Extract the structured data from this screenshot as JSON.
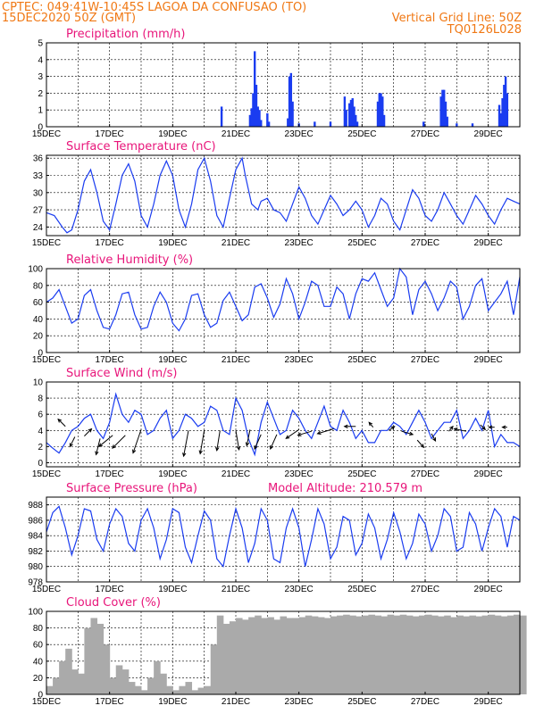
{
  "header": {
    "line1_left": "CPTEC:  049:41W-10:45S  LAGOA DA CONFUSAO (TO)",
    "line2_left": "15DEC2020 50Z (GMT)",
    "line2_right": "Vertical Grid Line: 50Z",
    "line3_right": "TQ0126L028"
  },
  "colors": {
    "header": "#f07814",
    "title": "#e8157a",
    "series": "#1a3cf0",
    "wind_arrow": "#000000",
    "cloud": "#aaaaaa"
  },
  "chart_data": [
    {
      "type": "bar",
      "title": "Precipitation (mm/h)",
      "ylim": [
        0,
        5
      ],
      "yticks": [
        "0",
        "1",
        "2",
        "3",
        "4",
        "5"
      ],
      "xticks": [
        "15DEC",
        "17DEC",
        "19DEC",
        "21DEC",
        "23DEC",
        "25DEC",
        "27DEC",
        "29DEC"
      ],
      "x_units": "days since 15DEC",
      "bars": [
        [
          5.55,
          1.2
        ],
        [
          6.45,
          0.7
        ],
        [
          6.5,
          1.1
        ],
        [
          6.55,
          2.0
        ],
        [
          6.6,
          4.5
        ],
        [
          6.65,
          2.5
        ],
        [
          6.7,
          1.2
        ],
        [
          6.75,
          1.0
        ],
        [
          6.8,
          0.4
        ],
        [
          7.0,
          0.8
        ],
        [
          7.05,
          0.3
        ],
        [
          7.65,
          0.5
        ],
        [
          7.7,
          3.0
        ],
        [
          7.75,
          3.2
        ],
        [
          7.8,
          1.5
        ],
        [
          8.0,
          0.2
        ],
        [
          8.5,
          0.3
        ],
        [
          9.0,
          0.3
        ],
        [
          9.45,
          1.8
        ],
        [
          9.5,
          1.0
        ],
        [
          9.6,
          1.4
        ],
        [
          9.65,
          1.6
        ],
        [
          9.7,
          1.7
        ],
        [
          9.75,
          1.2
        ],
        [
          9.8,
          0.7
        ],
        [
          9.85,
          0.3
        ],
        [
          10.5,
          1.5
        ],
        [
          10.55,
          2.0
        ],
        [
          10.6,
          2.0
        ],
        [
          10.65,
          1.8
        ],
        [
          10.7,
          0.7
        ],
        [
          11.95,
          0.3
        ],
        [
          12.5,
          1.8
        ],
        [
          12.55,
          2.2
        ],
        [
          12.6,
          2.2
        ],
        [
          12.65,
          1.5
        ],
        [
          12.7,
          0.6
        ],
        [
          13.0,
          0.2
        ],
        [
          13.5,
          0.2
        ],
        [
          14.35,
          1.3
        ],
        [
          14.4,
          0.8
        ],
        [
          14.45,
          1.7
        ],
        [
          14.5,
          2.5
        ],
        [
          14.55,
          3.0
        ],
        [
          14.6,
          2.0
        ]
      ]
    },
    {
      "type": "line",
      "title": "Surface Temperature (nC)",
      "ylim": [
        22.5,
        36.5
      ],
      "yticks": [
        24,
        27,
        30,
        33,
        36
      ],
      "xticks": [
        "15DEC",
        "17DEC",
        "19DEC",
        "21DEC",
        "23DEC",
        "25DEC",
        "27DEC",
        "29DEC"
      ],
      "x_units": "days since 15DEC",
      "x": [
        0,
        0.25,
        0.5,
        0.65,
        0.8,
        1.0,
        1.2,
        1.4,
        1.6,
        1.8,
        2.0,
        2.2,
        2.4,
        2.6,
        2.8,
        3.0,
        3.2,
        3.4,
        3.6,
        3.8,
        4.0,
        4.2,
        4.4,
        4.6,
        4.8,
        5.0,
        5.2,
        5.4,
        5.6,
        5.8,
        6.0,
        6.2,
        6.3,
        6.5,
        6.7,
        6.8,
        7.0,
        7.2,
        7.4,
        7.6,
        7.8,
        8.0,
        8.2,
        8.4,
        8.6,
        8.8,
        9.0,
        9.2,
        9.4,
        9.6,
        9.8,
        10.0,
        10.2,
        10.4,
        10.6,
        10.8,
        11.0,
        11.2,
        11.4,
        11.6,
        11.8,
        12.0,
        12.2,
        12.4,
        12.6,
        12.8,
        13.0,
        13.2,
        13.4,
        13.6,
        13.8,
        14.0,
        14.2,
        14.4,
        14.6,
        14.8,
        15.0
      ],
      "y": [
        26.5,
        26,
        24,
        23,
        23.5,
        27,
        32,
        34,
        30,
        25,
        23.5,
        28,
        33,
        35,
        32,
        26,
        24,
        28,
        33,
        35.5,
        33,
        27,
        24,
        28,
        34,
        36,
        32,
        26,
        24,
        29,
        34,
        36,
        33,
        28,
        27,
        28.5,
        29,
        27,
        26.5,
        25,
        28,
        31,
        29,
        26,
        24.5,
        27,
        29.5,
        28,
        26,
        27,
        28.5,
        27,
        24,
        26,
        29,
        28,
        25,
        23.5,
        27,
        30.5,
        29,
        26,
        25,
        27,
        30,
        28,
        26,
        24.5,
        27,
        29.5,
        28,
        26,
        24.5,
        27,
        29,
        28.5,
        28
      ]
    },
    {
      "type": "line",
      "title": "Relative Humidity (%)",
      "ylim": [
        0,
        100
      ],
      "yticks": [
        0,
        20,
        40,
        60,
        80,
        100
      ],
      "xticks": [
        "15DEC",
        "17DEC",
        "19DEC",
        "21DEC",
        "23DEC",
        "25DEC",
        "27DEC",
        "29DEC"
      ],
      "x_units": "days since 15DEC",
      "x": [
        0,
        0.2,
        0.4,
        0.6,
        0.8,
        1.0,
        1.2,
        1.4,
        1.6,
        1.8,
        2.0,
        2.2,
        2.4,
        2.6,
        2.8,
        3.0,
        3.2,
        3.4,
        3.6,
        3.8,
        4.0,
        4.2,
        4.4,
        4.6,
        4.8,
        5.0,
        5.2,
        5.4,
        5.6,
        5.8,
        6.0,
        6.2,
        6.4,
        6.6,
        6.8,
        7.0,
        7.2,
        7.4,
        7.6,
        7.8,
        8.0,
        8.2,
        8.4,
        8.6,
        8.8,
        9.0,
        9.2,
        9.4,
        9.6,
        9.8,
        10.0,
        10.2,
        10.4,
        10.6,
        10.8,
        11.0,
        11.2,
        11.4,
        11.6,
        11.8,
        12.0,
        12.2,
        12.4,
        12.6,
        12.8,
        13.0,
        13.2,
        13.4,
        13.6,
        13.8,
        14.0,
        14.2,
        14.4,
        14.6,
        14.8,
        15.0
      ],
      "y": [
        60,
        65,
        75,
        55,
        35,
        40,
        68,
        75,
        50,
        30,
        28,
        45,
        70,
        72,
        45,
        28,
        30,
        55,
        72,
        60,
        35,
        26,
        40,
        68,
        70,
        45,
        30,
        35,
        62,
        72,
        55,
        38,
        45,
        78,
        82,
        65,
        42,
        58,
        88,
        70,
        40,
        60,
        85,
        80,
        55,
        55,
        78,
        70,
        40,
        70,
        88,
        85,
        95,
        75,
        55,
        65,
        100,
        90,
        45,
        75,
        85,
        70,
        50,
        65,
        85,
        78,
        40,
        55,
        80,
        88,
        50,
        60,
        70,
        85,
        45,
        90
      ]
    },
    {
      "type": "line",
      "title": "Surface Wind (m/s)",
      "ylim": [
        -0.5,
        10
      ],
      "yticks": [
        0,
        2,
        4,
        6,
        8,
        10
      ],
      "xticks": [
        "15DEC",
        "17DEC",
        "19DEC",
        "21DEC",
        "23DEC",
        "25DEC",
        "27DEC",
        "29DEC"
      ],
      "x_units": "days since 15DEC",
      "x": [
        0,
        0.2,
        0.4,
        0.6,
        0.8,
        1.0,
        1.2,
        1.4,
        1.6,
        1.8,
        2.0,
        2.2,
        2.4,
        2.6,
        2.8,
        3.0,
        3.2,
        3.4,
        3.6,
        3.8,
        4.0,
        4.2,
        4.4,
        4.6,
        4.8,
        5.0,
        5.2,
        5.4,
        5.6,
        5.8,
        6.0,
        6.2,
        6.4,
        6.6,
        6.8,
        7.0,
        7.2,
        7.4,
        7.6,
        7.8,
        8.0,
        8.2,
        8.4,
        8.6,
        8.8,
        9.0,
        9.2,
        9.4,
        9.6,
        9.8,
        10.0,
        10.2,
        10.4,
        10.6,
        10.8,
        11.0,
        11.2,
        11.4,
        11.6,
        11.8,
        12.0,
        12.2,
        12.4,
        12.6,
        12.8,
        13.0,
        13.2,
        13.4,
        13.6,
        13.8,
        14.0,
        14.2,
        14.4,
        14.6,
        14.8,
        15.0
      ],
      "y": [
        2.5,
        1.8,
        1.2,
        2.5,
        4.0,
        4.5,
        5.5,
        6.0,
        4.0,
        3.0,
        5.0,
        8.5,
        6.0,
        5.0,
        6.5,
        6.0,
        3.5,
        4.0,
        5.5,
        6.5,
        3.0,
        4.0,
        6.0,
        5.5,
        4.5,
        5.0,
        7.0,
        6.5,
        4.0,
        3.5,
        8.0,
        6.5,
        3.0,
        1.0,
        5.0,
        7.5,
        5.5,
        3.5,
        4.0,
        6.5,
        5.5,
        4.0,
        3.0,
        5.0,
        7.0,
        4.5,
        4.0,
        6.5,
        5.0,
        3.0,
        4.0,
        2.5,
        2.5,
        4.0,
        4.0,
        5.0,
        4.5,
        3.5,
        5.0,
        6.5,
        5.0,
        3.0,
        4.0,
        5.0,
        5.0,
        6.5,
        3.0,
        4.0,
        5.5,
        4.0,
        6.5,
        2.0,
        3.5,
        2.5,
        2.5,
        2.0
      ],
      "vectors": [
        [
          0.6,
          4.5,
          -0.9,
          0.9
        ],
        [
          0.9,
          3.2,
          -0.6,
          -1.2
        ],
        [
          1.2,
          3.3,
          0.9,
          0.9
        ],
        [
          1.7,
          3.0,
          -0.5,
          -2.0
        ],
        [
          2.1,
          3.4,
          -1.7,
          -1.4
        ],
        [
          2.5,
          3.4,
          -1.6,
          -1.6
        ],
        [
          3.0,
          4.1,
          -1.0,
          -2.9
        ],
        [
          4.5,
          4.0,
          -0.6,
          -3.2
        ],
        [
          5.0,
          4.0,
          -0.5,
          -2.9
        ],
        [
          5.5,
          4.0,
          -0.4,
          -2.5
        ],
        [
          6.0,
          4.0,
          0.4,
          -2.4
        ],
        [
          6.45,
          4.1,
          -0.4,
          -2.0
        ],
        [
          6.8,
          3.5,
          -0.8,
          -1.8
        ],
        [
          7.3,
          3.5,
          -0.8,
          -1.8
        ],
        [
          8.0,
          4.1,
          -1.6,
          -1.1
        ],
        [
          8.4,
          3.9,
          -1.7,
          -0.5
        ],
        [
          9.1,
          4.2,
          -2.0,
          -0.6
        ],
        [
          9.8,
          4.5,
          -1.4,
          0.0
        ],
        [
          10.35,
          4.4,
          -0.5,
          0.6
        ],
        [
          10.85,
          4.0,
          0.7,
          0.5
        ],
        [
          11.25,
          3.9,
          1.4,
          -0.4
        ],
        [
          11.75,
          2.8,
          0.8,
          -0.9
        ],
        [
          12.2,
          3.6,
          0.5,
          -0.9
        ],
        [
          12.75,
          3.9,
          0.5,
          0.6
        ],
        [
          13.3,
          3.9,
          -1.5,
          0.3
        ],
        [
          13.75,
          4.7,
          0.6,
          -0.6
        ],
        [
          14.2,
          4.4,
          -0.7,
          0.0
        ],
        [
          14.6,
          4.4,
          -0.6,
          0.0
        ]
      ]
    },
    {
      "type": "line",
      "title": "Surface Pressure (hPa)",
      "annotation": "Model Altitude: 210.579 m",
      "ylim": [
        978,
        989
      ],
      "yticks": [
        978,
        980,
        982,
        984,
        986,
        988
      ],
      "xticks": [
        "15DEC",
        "17DEC",
        "19DEC",
        "21DEC",
        "23DEC",
        "25DEC",
        "27DEC",
        "29DEC"
      ],
      "x_units": "days since 15DEC",
      "x": [
        0,
        0.2,
        0.4,
        0.6,
        0.8,
        1.0,
        1.2,
        1.4,
        1.6,
        1.8,
        2.0,
        2.2,
        2.4,
        2.6,
        2.8,
        3.0,
        3.2,
        3.4,
        3.6,
        3.8,
        4.0,
        4.2,
        4.4,
        4.6,
        4.8,
        5.0,
        5.2,
        5.4,
        5.6,
        5.8,
        6.0,
        6.2,
        6.4,
        6.6,
        6.8,
        7.0,
        7.2,
        7.4,
        7.6,
        7.8,
        8.0,
        8.2,
        8.4,
        8.6,
        8.8,
        9.0,
        9.2,
        9.4,
        9.6,
        9.8,
        10.0,
        10.2,
        10.4,
        10.6,
        10.8,
        11.0,
        11.2,
        11.4,
        11.6,
        11.8,
        12.0,
        12.2,
        12.4,
        12.6,
        12.8,
        13.0,
        13.2,
        13.4,
        13.6,
        13.8,
        14.0,
        14.2,
        14.4,
        14.6,
        14.8,
        15.0
      ],
      "y": [
        984.5,
        987,
        987.8,
        985,
        981.5,
        984,
        987.5,
        987.2,
        983.5,
        982,
        985.5,
        987.5,
        986.5,
        983,
        982,
        986,
        987.5,
        985,
        981,
        983.5,
        987.5,
        987,
        982.5,
        980.5,
        984,
        987.2,
        986,
        981,
        980,
        984,
        987.5,
        985,
        980.5,
        983,
        987.5,
        986,
        981,
        980.5,
        985,
        987.5,
        985,
        980,
        983.5,
        987.5,
        985.5,
        981,
        982.5,
        986.5,
        986,
        981.5,
        983,
        986.8,
        985,
        981,
        983.5,
        987,
        984.5,
        981,
        983,
        986.8,
        985.5,
        982,
        984,
        987.5,
        986.5,
        982,
        982.5,
        987,
        985.5,
        982,
        985,
        987.5,
        986.5,
        982.5,
        986.5,
        986
      ]
    },
    {
      "type": "bar",
      "title": "Cloud Cover (%)",
      "ylim": [
        0,
        100
      ],
      "yticks": [
        0,
        20,
        40,
        60,
        80,
        100
      ],
      "xticks": [
        "15DEC",
        "17DEC",
        "19DEC",
        "21DEC",
        "23DEC",
        "25DEC",
        "27DEC",
        "29DEC"
      ],
      "x_units": "days since 15DEC",
      "x": [
        0,
        0.2,
        0.4,
        0.6,
        0.8,
        1.0,
        1.2,
        1.4,
        1.6,
        1.8,
        2.0,
        2.2,
        2.4,
        2.6,
        2.8,
        3.0,
        3.2,
        3.4,
        3.6,
        3.8,
        4.0,
        4.2,
        4.4,
        4.6,
        4.8,
        5.0,
        5.2,
        5.4,
        5.6,
        5.8,
        6.0,
        6.2,
        6.4,
        6.6,
        6.8,
        7.0,
        7.2,
        7.4,
        7.6,
        7.8,
        8.0,
        8.2,
        8.4,
        8.6,
        8.8,
        9.0,
        9.2,
        9.4,
        9.6,
        9.8,
        10.0,
        10.2,
        10.4,
        10.6,
        10.8,
        11.0,
        11.2,
        11.4,
        11.6,
        11.8,
        12.0,
        12.2,
        12.4,
        12.6,
        12.8,
        13.0,
        13.2,
        13.4,
        13.6,
        13.8,
        14.0,
        14.2,
        14.4,
        14.6,
        14.8,
        15.0
      ],
      "y": [
        10,
        20,
        40,
        55,
        30,
        25,
        80,
        92,
        85,
        60,
        20,
        35,
        30,
        15,
        10,
        5,
        20,
        40,
        25,
        10,
        5,
        10,
        15,
        5,
        8,
        10,
        60,
        95,
        85,
        88,
        92,
        90,
        93,
        95,
        92,
        93,
        90,
        94,
        92,
        92,
        93,
        95,
        94,
        93,
        92,
        94,
        95,
        96,
        95,
        94,
        95,
        96,
        95,
        94,
        96,
        95,
        96,
        95,
        94,
        95,
        96,
        95,
        94,
        95,
        93,
        95,
        94,
        95,
        94,
        95,
        96,
        95,
        94,
        95,
        96,
        95
      ]
    }
  ]
}
